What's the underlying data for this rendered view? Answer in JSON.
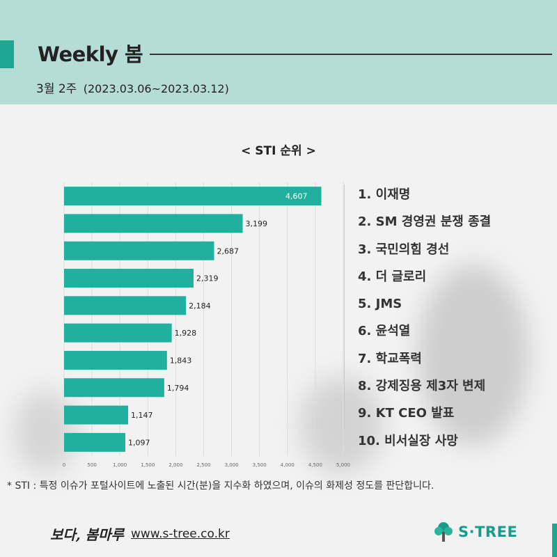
{
  "header": {
    "title": "Weekly 봄",
    "week_label": "3월 2주",
    "date_range": "(2023.03.06~2023.03.12)"
  },
  "chart_title": "< STI 순위 >",
  "colors": {
    "accent": "#1aa893",
    "bar": "#20b09d",
    "header_bg": "#b5ddd6"
  },
  "chart_data": {
    "type": "bar",
    "orientation": "horizontal",
    "title": "< STI 순위 >",
    "categories": [
      "1",
      "2",
      "3",
      "4",
      "5",
      "6",
      "7",
      "8",
      "9",
      "10"
    ],
    "values": [
      4607,
      3199,
      2687,
      2319,
      2184,
      1928,
      1843,
      1794,
      1147,
      1097
    ],
    "value_labels": [
      "4,607",
      "3,199",
      "2,687",
      "2,319",
      "2,184",
      "1,928",
      "1,843",
      "1,794",
      "1,147",
      "1,097"
    ],
    "xlim": [
      0,
      5000
    ],
    "x_ticks": [
      "0",
      "500",
      "1,000",
      "1,500",
      "2,000",
      "2,500",
      "3,000",
      "3,500",
      "4,000",
      "4,500",
      "5,000"
    ],
    "grid": true
  },
  "ranking": [
    "1. 이재명",
    "2. SM 경영권 분쟁 종결",
    "3. 국민의힘 경선",
    "4. 더 글로리",
    "5. JMS",
    "6. 윤석열",
    "7. 학교폭력",
    "8. 강제징용 제3자 변제",
    "9. KT CEO 발표",
    "10. 비서실장 사망"
  ],
  "footnote": "* STI : 특정 이슈가 포털사이트에 노출된 시간(분)을 지수화 하였으며, 이슈의 화제성 정도를 판단합니다.",
  "footer": {
    "brand_script": "보다, 봄마루",
    "website": "www.s-tree.co.kr",
    "logo_text": "S·TREE",
    "logo_icon": "tree-icon"
  }
}
